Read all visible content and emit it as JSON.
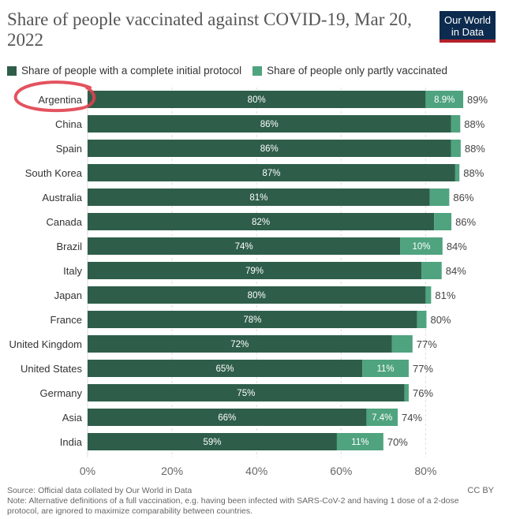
{
  "title": "Share of people vaccinated against COVID-19, Mar 20, 2022",
  "logo": {
    "line1": "Our World",
    "line2": "in Data"
  },
  "legend": {
    "full_label": "Share of people with a complete initial protocol",
    "partial_label": "Share of people only partly vaccinated"
  },
  "colors": {
    "full": "#2e5e4a",
    "partial": "#4fa37f",
    "grid": "#dddddd",
    "annotation": "#e0404e"
  },
  "footer": {
    "source": "Source: Official data collated by Our World in Data",
    "note": "Note: Alternative definitions of a full vaccination, e.g. having been infected with SARS-CoV-2 and having 1 dose of a 2-dose protocol, are ignored to maximize comparability between countries.",
    "license": "CC BY"
  },
  "chart_data": {
    "type": "bar",
    "orientation": "horizontal",
    "stacked": true,
    "categories": [
      "Argentina",
      "China",
      "Spain",
      "South Korea",
      "Australia",
      "Canada",
      "Brazil",
      "Italy",
      "Japan",
      "France",
      "United Kingdom",
      "United States",
      "Germany",
      "Asia",
      "India"
    ],
    "series": [
      {
        "name": "Share of people with a complete initial protocol",
        "values": [
          80,
          86,
          86,
          87,
          81,
          82,
          74,
          79,
          80,
          78,
          72,
          65,
          75,
          66,
          59
        ],
        "labels": [
          "80%",
          "86%",
          "86%",
          "87%",
          "81%",
          "82%",
          "74%",
          "79%",
          "80%",
          "78%",
          "72%",
          "65%",
          "75%",
          "66%",
          "59%"
        ]
      },
      {
        "name": "Share of people only partly vaccinated",
        "values": [
          8.9,
          2.2,
          2.3,
          1.0,
          4.6,
          4.1,
          10,
          4.8,
          1.3,
          2.2,
          4.9,
          11,
          1.0,
          7.4,
          11
        ],
        "labels": [
          "8.9%",
          "",
          "",
          "",
          "",
          "",
          "10%",
          "",
          "",
          "",
          "",
          "11%",
          "",
          "7.4%",
          "11%"
        ]
      }
    ],
    "totals": [
      "89%",
      "88%",
      "88%",
      "88%",
      "86%",
      "86%",
      "84%",
      "84%",
      "81%",
      "80%",
      "77%",
      "77%",
      "76%",
      "74%",
      "70%"
    ],
    "xlim": [
      0,
      90
    ],
    "xticks": [
      "0%",
      "20%",
      "40%",
      "60%",
      "80%"
    ],
    "xtick_values": [
      0,
      20,
      40,
      60,
      80
    ],
    "grid": true,
    "highlighted_category": "Argentina"
  }
}
